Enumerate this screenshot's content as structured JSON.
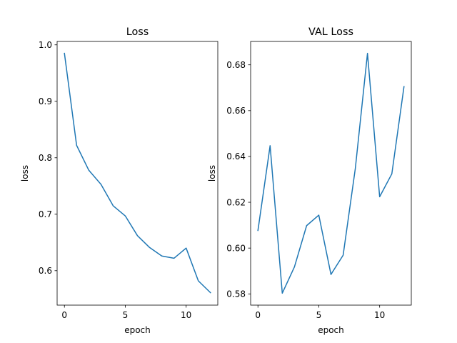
{
  "chart_data": [
    {
      "type": "line",
      "title": "Loss",
      "xlabel": "epoch",
      "ylabel": "loss",
      "x": [
        0,
        1,
        2,
        3,
        4,
        5,
        6,
        7,
        8,
        9,
        10,
        11,
        12
      ],
      "series": [
        {
          "values": [
            0.985,
            0.822,
            0.778,
            0.753,
            0.715,
            0.697,
            0.662,
            0.641,
            0.626,
            0.622,
            0.64,
            0.582,
            0.561
          ],
          "color": "#1f77b4"
        }
      ],
      "xlim": [
        -0.6,
        12.6
      ],
      "ylim": [
        0.539,
        1.006
      ],
      "xticks": [
        0,
        5,
        10
      ],
      "xtick_labels": [
        "0",
        "5",
        "10"
      ],
      "yticks": [
        0.6,
        0.7,
        0.8,
        0.9,
        1.0
      ],
      "ytick_labels": [
        "0.6",
        "0.7",
        "0.8",
        "0.9",
        "1.0"
      ],
      "grid": false
    },
    {
      "type": "line",
      "title": "VAL Loss",
      "xlabel": "epoch",
      "ylabel": "loss",
      "x": [
        0,
        1,
        2,
        3,
        4,
        5,
        6,
        7,
        8,
        9,
        10,
        11,
        12
      ],
      "series": [
        {
          "values": [
            0.6077,
            0.6447,
            0.5803,
            0.5918,
            0.6098,
            0.6144,
            0.5885,
            0.5969,
            0.6347,
            0.685,
            0.6224,
            0.6324,
            0.6705
          ],
          "color": "#1f77b4"
        }
      ],
      "xlim": [
        -0.6,
        12.6
      ],
      "ylim": [
        0.5751,
        0.6902
      ],
      "xticks": [
        0,
        5,
        10
      ],
      "xtick_labels": [
        "0",
        "5",
        "10"
      ],
      "yticks": [
        0.58,
        0.6,
        0.62,
        0.64,
        0.66,
        0.68
      ],
      "ytick_labels": [
        "0.58",
        "0.60",
        "0.62",
        "0.64",
        "0.66",
        "0.68"
      ],
      "grid": false
    }
  ]
}
